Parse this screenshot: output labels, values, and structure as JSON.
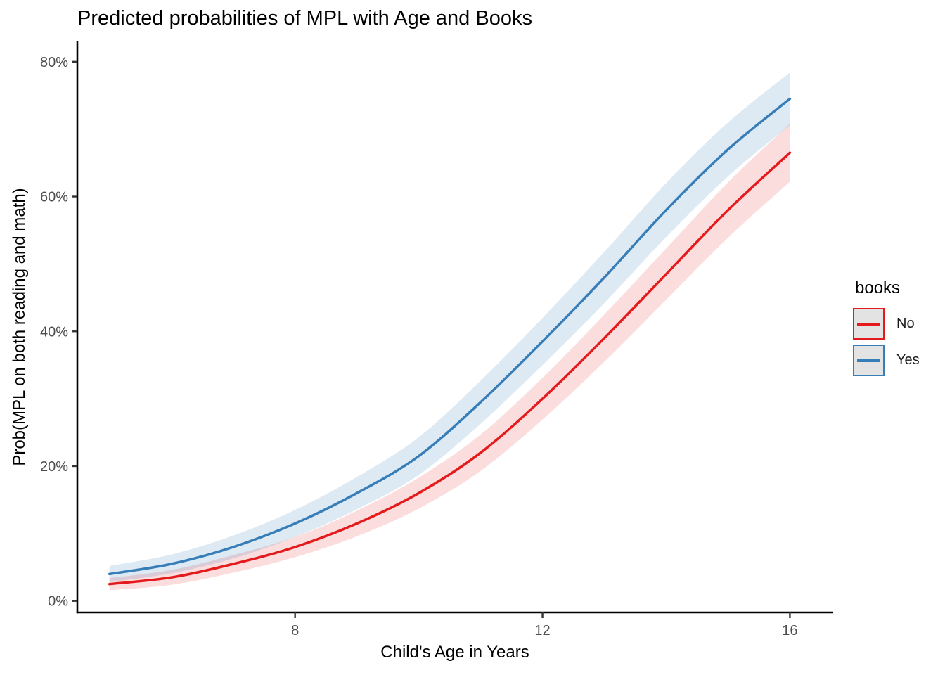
{
  "chart_data": {
    "type": "line",
    "title": "Predicted probabilities of MPL with Age and Books",
    "xlabel": "Child's Age in Years",
    "ylabel": "Prob(MPL on both reading and math)",
    "x": [
      5,
      6,
      7,
      8,
      9,
      10,
      11,
      12,
      13,
      14,
      15,
      16
    ],
    "series": [
      {
        "name": "No",
        "color": "#E41A1C",
        "fill": "rgba(228,26,28,0.15)",
        "values": [
          2.5,
          3.5,
          5.5,
          8,
          11.5,
          16,
          22,
          30,
          39,
          48.5,
          58,
          66.5
        ],
        "ci_low": [
          1.6,
          2.4,
          4.2,
          6.5,
          9.6,
          13.7,
          19.3,
          26.9,
          35.5,
          44.7,
          53.9,
          62.2
        ],
        "ci_high": [
          3.4,
          4.6,
          6.8,
          9.5,
          13.4,
          18.3,
          24.7,
          33.1,
          42.5,
          52.3,
          62.1,
          70.8
        ]
      },
      {
        "name": "Yes",
        "color": "#377EB8",
        "fill": "rgba(55,126,184,0.17)",
        "values": [
          4,
          5.5,
          8,
          11.5,
          16,
          21.5,
          29.5,
          38.5,
          48,
          58,
          67,
          74.5
        ],
        "ci_low": [
          2.8,
          4.1,
          6.3,
          9.5,
          13.6,
          18.7,
          26.3,
          35.0,
          44.2,
          54.0,
          63.0,
          70.6
        ],
        "ci_high": [
          5.2,
          6.9,
          9.7,
          13.5,
          18.4,
          24.3,
          32.7,
          42.0,
          51.8,
          62.0,
          71.0,
          78.4
        ]
      }
    ],
    "x_ticks": {
      "values": [
        8,
        12,
        16
      ],
      "labels": [
        "8",
        "12",
        "16"
      ]
    },
    "y_ticks": {
      "values": [
        0,
        20,
        40,
        60,
        80
      ],
      "labels": [
        "0%",
        "20%",
        "40%",
        "60%",
        "80%"
      ]
    },
    "xlim": [
      4.48,
      16.7
    ],
    "ylim": [
      -1.7,
      82.9
    ],
    "grid": false,
    "legend": {
      "title": "books",
      "entries": [
        "No",
        "Yes"
      ],
      "position": "right"
    },
    "colors": {
      "axis_line": "#000000",
      "tick_mark": "#333333",
      "tick_text": "#4D4D4D",
      "legend_key_fill": "#E3E3E3",
      "background": "#FFFFFF"
    }
  }
}
